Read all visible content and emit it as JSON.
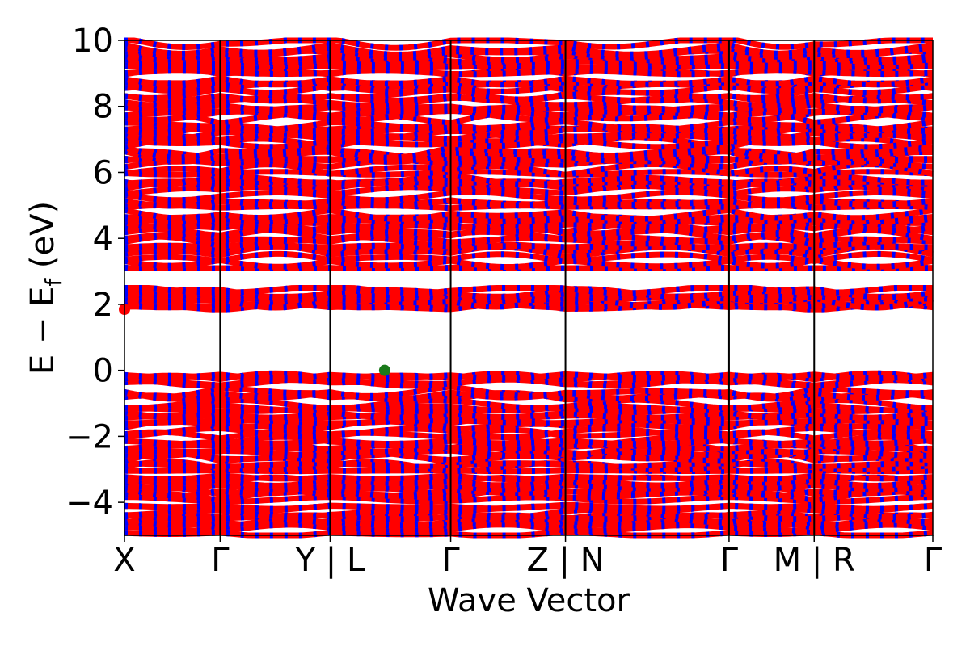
{
  "chart_data": {
    "type": "line",
    "title": "",
    "xlabel": "Wave Vector",
    "ylabel": "E − E",
    "ylabel_sub": "f",
    "ylabel_unit": " (eV)",
    "ylim": [
      -5,
      10
    ],
    "yticks": [
      -4,
      -2,
      0,
      2,
      4,
      6,
      8,
      10
    ],
    "ytick_labels": [
      "−4",
      "−2",
      "0",
      "2",
      "4",
      "6",
      "8",
      "10"
    ],
    "kpath": [
      {
        "label": "X",
        "x": 0.0
      },
      {
        "label": "Γ",
        "x": 1.0
      },
      {
        "label": "Y | L",
        "x": 2.15
      },
      {
        "label": "Γ",
        "x": 3.41
      },
      {
        "label": "Z | N",
        "x": 4.61
      },
      {
        "label": "Γ",
        "x": 6.32
      },
      {
        "label": "M | R",
        "x": 7.21
      },
      {
        "label": "Γ",
        "x": 8.45
      }
    ],
    "xlim": [
      0,
      8.45
    ],
    "series": [
      {
        "color": "#ff0000",
        "line": "solid"
      },
      {
        "color": "#0000ff",
        "line": "dashed"
      }
    ],
    "valence_band_max": {
      "x": 2.72,
      "y": 0.0,
      "color": "#1a7a1a"
    },
    "conduction_band_min": {
      "x": 0.0,
      "y": 1.85,
      "color": "#ff0000"
    },
    "band_regions": [
      {
        "from": -5.0,
        "to": -0.05
      },
      {
        "from": 1.85,
        "to": 2.5
      },
      {
        "from": 3.1,
        "to": 10.0
      }
    ],
    "grid": false
  }
}
